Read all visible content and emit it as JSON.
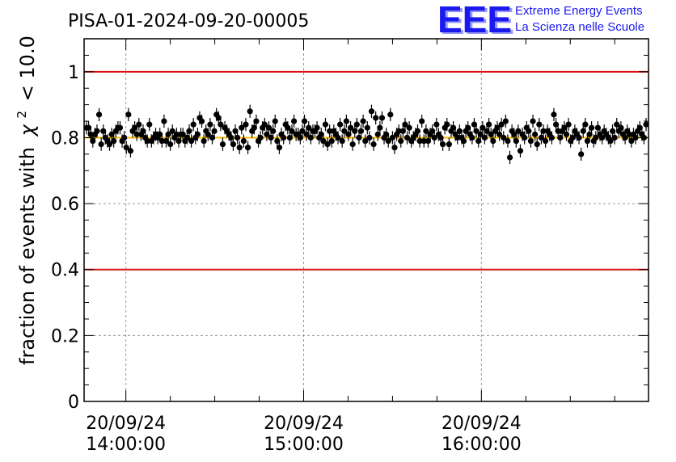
{
  "chart_data": {
    "type": "scatter",
    "title": "PISA-01-2024-09-20-00005",
    "ylabel_main": "fraction of events with",
    "ylabel_chi": "χ",
    "ylabel_sup": "2",
    "ylabel_tail": "< 10.0",
    "xlabel": "",
    "x_range_hours": [
      13.765,
      16.94
    ],
    "ylim": [
      0,
      1.1
    ],
    "y_ticks": [
      {
        "value": 0,
        "label": "0"
      },
      {
        "value": 0.2,
        "label": "0.2"
      },
      {
        "value": 0.4,
        "label": "0.4"
      },
      {
        "value": 0.6,
        "label": "0.6"
      },
      {
        "value": 0.8,
        "label": "0.8"
      },
      {
        "value": 1.0,
        "label": "1"
      }
    ],
    "x_ticks": [
      {
        "hour": 14,
        "date": "20/09/24",
        "time": "14:00:00"
      },
      {
        "hour": 15,
        "date": "20/09/24",
        "time": "15:00:00"
      },
      {
        "hour": 16,
        "date": "20/09/24",
        "time": "16:00:00"
      }
    ],
    "reference_lines": [
      {
        "value": 1.0,
        "color": "#dd1111"
      },
      {
        "value": 0.4,
        "color": "#dd1111"
      },
      {
        "value": 0.8,
        "color": "#ffbb00"
      }
    ],
    "grid": true,
    "error_bar": 0.02,
    "series": [
      {
        "marker_color": "#000000",
        "values": [
          0.83,
          0.83,
          0.81,
          0.79,
          0.81,
          0.82,
          0.87,
          0.78,
          0.82,
          0.8,
          0.79,
          0.78,
          0.81,
          0.79,
          0.82,
          0.83,
          0.83,
          0.79,
          0.8,
          0.77,
          0.87,
          0.76,
          0.82,
          0.83,
          0.81,
          0.84,
          0.81,
          0.82,
          0.8,
          0.79,
          0.84,
          0.79,
          0.8,
          0.81,
          0.8,
          0.81,
          0.79,
          0.85,
          0.79,
          0.81,
          0.78,
          0.82,
          0.8,
          0.81,
          0.79,
          0.81,
          0.81,
          0.79,
          0.8,
          0.82,
          0.79,
          0.84,
          0.8,
          0.81,
          0.86,
          0.85,
          0.79,
          0.82,
          0.81,
          0.84,
          0.8,
          0.82,
          0.87,
          0.86,
          0.84,
          0.78,
          0.83,
          0.82,
          0.81,
          0.8,
          0.78,
          0.82,
          0.8,
          0.77,
          0.83,
          0.79,
          0.84,
          0.77,
          0.88,
          0.82,
          0.83,
          0.85,
          0.79,
          0.8,
          0.83,
          0.84,
          0.81,
          0.83,
          0.8,
          0.82,
          0.85,
          0.79,
          0.77,
          0.81,
          0.8,
          0.84,
          0.83,
          0.8,
          0.82,
          0.85,
          0.81,
          0.81,
          0.8,
          0.82,
          0.85,
          0.81,
          0.83,
          0.8,
          0.82,
          0.82,
          0.83,
          0.8,
          0.81,
          0.79,
          0.84,
          0.78,
          0.82,
          0.79,
          0.82,
          0.81,
          0.8,
          0.84,
          0.79,
          0.82,
          0.85,
          0.81,
          0.83,
          0.78,
          0.82,
          0.84,
          0.8,
          0.82,
          0.85,
          0.79,
          0.83,
          0.8,
          0.88,
          0.78,
          0.86,
          0.81,
          0.83,
          0.86,
          0.8,
          0.81,
          0.79,
          0.87,
          0.8,
          0.77,
          0.81,
          0.82,
          0.79,
          0.82,
          0.84,
          0.8,
          0.83,
          0.79,
          0.8,
          0.81,
          0.82,
          0.79,
          0.85,
          0.79,
          0.82,
          0.79,
          0.81,
          0.82,
          0.8,
          0.84,
          0.81,
          0.8,
          0.78,
          0.83,
          0.84,
          0.78,
          0.82,
          0.83,
          0.81,
          0.8,
          0.82,
          0.8,
          0.79,
          0.82,
          0.83,
          0.81,
          0.8,
          0.84,
          0.82,
          0.79,
          0.81,
          0.83,
          0.8,
          0.82,
          0.84,
          0.81,
          0.79,
          0.82,
          0.83,
          0.81,
          0.84,
          0.8,
          0.85,
          0.79,
          0.74,
          0.82,
          0.81,
          0.79,
          0.82,
          0.76,
          0.81,
          0.8,
          0.83,
          0.82,
          0.79,
          0.85,
          0.81,
          0.78,
          0.84,
          0.8,
          0.82,
          0.79,
          0.82,
          0.81,
          0.8,
          0.87,
          0.84,
          0.82,
          0.8,
          0.82,
          0.83,
          0.81,
          0.84,
          0.79,
          0.8,
          0.82,
          0.81,
          0.8,
          0.75,
          0.82,
          0.84,
          0.79,
          0.81,
          0.83,
          0.79,
          0.8,
          0.83,
          0.81,
          0.8,
          0.82,
          0.81,
          0.8,
          0.79,
          0.82,
          0.8,
          0.84,
          0.82,
          0.83,
          0.81,
          0.8,
          0.82,
          0.81,
          0.79,
          0.81,
          0.8,
          0.82,
          0.83,
          0.81,
          0.8,
          0.84
        ]
      }
    ]
  },
  "logo": {
    "letters": "EEE",
    "line1": "Extreme Energy Events",
    "line2": "La Scienza nelle Scuole",
    "color": "#1a1aee"
  }
}
